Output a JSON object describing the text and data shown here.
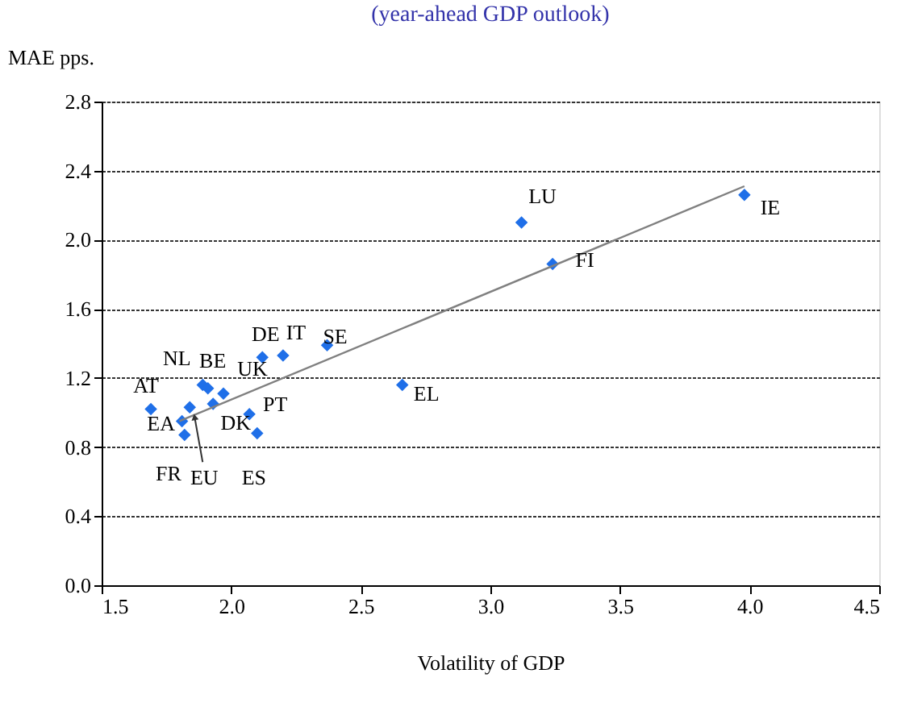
{
  "chart_data": {
    "type": "scatter",
    "title": "(year-ahead GDP outlook)",
    "xlabel": "Volatility of GDP",
    "ylabel": "MAE pps.",
    "xlim": [
      1.5,
      4.5
    ],
    "xticks": [
      {
        "value": 1.5,
        "label": "1.5"
      },
      {
        "value": 2,
        "label": "2.0"
      },
      {
        "value": 2.5,
        "label": "2.5"
      },
      {
        "value": 3,
        "label": "3.0"
      },
      {
        "value": 3.5,
        "label": "3.5"
      },
      {
        "value": 4,
        "label": "4.0"
      },
      {
        "value": 4.5,
        "label": "4.5"
      }
    ],
    "ylim": [
      0,
      2.8
    ],
    "yticks": [
      {
        "value": 0,
        "label": "0.0"
      },
      {
        "value": 0.4,
        "label": "0.4"
      },
      {
        "value": 0.8,
        "label": "0.8"
      },
      {
        "value": 1.2,
        "label": "1.2"
      },
      {
        "value": 1.6,
        "label": "1.6"
      },
      {
        "value": 2,
        "label": "2.0"
      },
      {
        "value": 2.4,
        "label": "2.4"
      },
      {
        "value": 2.8,
        "label": "2.8"
      }
    ],
    "grid": "y",
    "legend": false,
    "series": [
      {
        "marker": "diamond",
        "color": "#1f6fe8",
        "x": [
          1.69,
          1.81,
          1.84,
          1.82,
          1.89,
          1.91,
          1.97,
          1.93,
          2.07,
          2.1,
          2.12,
          2.2,
          2.37,
          2.66,
          3.12,
          3.24,
          3.98
        ],
        "values": [
          1.02,
          0.95,
          1.03,
          0.87,
          1.16,
          1.14,
          1.11,
          1.05,
          0.99,
          0.88,
          1.32,
          1.33,
          1.39,
          1.16,
          2.1,
          1.86,
          2.26
        ]
      },
      {
        "type": "line",
        "color": "#808080",
        "x": [
          1.8,
          3.98
        ],
        "values": [
          0.95,
          2.31
        ]
      }
    ],
    "annotations": [
      {
        "text": "AT",
        "x": 1.69,
        "y": 1.02
      },
      {
        "text": "EA",
        "x": 1.81,
        "y": 0.95
      },
      {
        "text": "EU",
        "x": 1.84,
        "y": 1.03
      },
      {
        "text": "FR",
        "x": 1.82,
        "y": 0.87
      },
      {
        "text": "NL",
        "x": 1.89,
        "y": 1.16
      },
      {
        "text": "BE",
        "x": 1.91,
        "y": 1.14
      },
      {
        "text": "UK",
        "x": 1.97,
        "y": 1.11
      },
      {
        "text": "DK",
        "x": 1.93,
        "y": 1.05
      },
      {
        "text": "PT",
        "x": 2.07,
        "y": 0.99
      },
      {
        "text": "ES",
        "x": 2.1,
        "y": 0.88
      },
      {
        "text": "DE",
        "x": 2.12,
        "y": 1.32
      },
      {
        "text": "IT",
        "x": 2.2,
        "y": 1.33
      },
      {
        "text": "SE",
        "x": 2.37,
        "y": 1.39
      },
      {
        "text": "EL",
        "x": 2.66,
        "y": 1.16
      },
      {
        "text": "LU",
        "x": 3.12,
        "y": 2.1
      },
      {
        "text": "FI",
        "x": 3.24,
        "y": 1.86
      },
      {
        "text": "IE",
        "x": 3.98,
        "y": 2.26
      }
    ]
  }
}
